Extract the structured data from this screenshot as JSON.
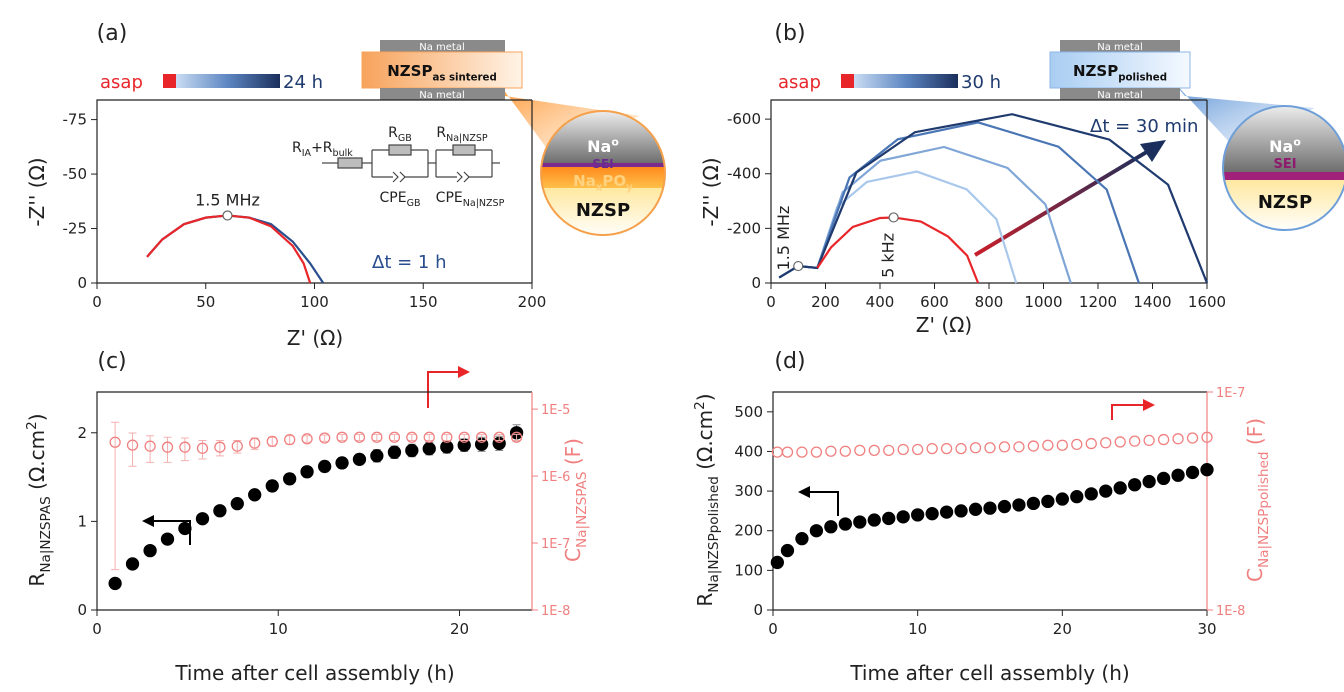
{
  "chart_data": [
    {
      "type": "line",
      "panel_label": "(a)",
      "xlabel": "Z' (Ω)",
      "ylabel": "-Z'' (Ω)",
      "xlim": [
        0,
        200
      ],
      "xticks": [
        0,
        50,
        100,
        150,
        200
      ],
      "ylim": [
        0,
        -84
      ],
      "yticks": [
        0,
        -25,
        -50,
        -75
      ],
      "series": [
        {
          "color": "#2a4e8e",
          "x": [
            23,
            30,
            40,
            50,
            60,
            70,
            80,
            90,
            98,
            104
          ],
          "values": [
            -12,
            -20,
            -27,
            -30,
            -31,
            -30,
            -27,
            -19,
            -9,
            0
          ]
        },
        {
          "color": "#e8262a",
          "x": [
            23,
            30,
            40,
            50,
            60,
            70,
            80,
            90,
            95,
            98
          ],
          "values": [
            -12,
            -20,
            -27,
            -30,
            -31,
            -30,
            -26,
            -17,
            -9,
            0
          ]
        }
      ],
      "markers": [
        {
          "x": 60,
          "y": -31,
          "label": "1.5 MHz"
        }
      ],
      "annotations": [
        "Δt = 1 h"
      ],
      "time_bar": {
        "start": "asap",
        "end": "24 h"
      },
      "circuit": [
        [
          "R",
          {
            "sub": "IA"
          },
          "+R",
          {
            "sub": "bulk"
          }
        ],
        [
          "R",
          {
            "sub": "GB"
          }
        ],
        [
          "R",
          {
            "sub": "Na|NZSP"
          }
        ],
        [
          "CPE",
          {
            "sub": "GB"
          }
        ],
        [
          "CPE",
          {
            "sub": "Na|NZSP"
          }
        ]
      ],
      "inset": {
        "top": "Na metal",
        "middle": [
          "NZSP",
          {
            "sub": "as sintered"
          }
        ],
        "bottom": "Na metal",
        "circle": [
          [
            "Na",
            {
              "sup": "o"
            }
          ],
          "SEI",
          [
            "Na",
            {
              "sub": "x"
            },
            "PO",
            {
              "sub": "y"
            }
          ],
          "NZSP"
        ]
      }
    },
    {
      "type": "line",
      "panel_label": "(b)",
      "xlabel": "Z' (Ω)",
      "ylabel": "-Z'' (Ω)",
      "xlim": [
        0,
        1600
      ],
      "xticks": [
        0,
        200,
        400,
        600,
        800,
        1000,
        1200,
        1400,
        1600
      ],
      "ylim": [
        0,
        -670
      ],
      "yticks": [
        0,
        -200,
        -400,
        -600
      ],
      "series": [
        {
          "color": "#aac8ec",
          "x": [
            30,
            100,
            170,
            243,
            352,
            535,
            718,
            827,
            900
          ],
          "values": [
            -20,
            -62,
            -55,
            -278,
            -370,
            -408,
            -343,
            -234,
            0
          ]
        },
        {
          "color": "#7fa6d6",
          "x": [
            30,
            100,
            170,
            263,
            402,
            635,
            868,
            1007,
            1100
          ],
          "values": [
            -20,
            -62,
            -55,
            -332,
            -448,
            -498,
            -421,
            -288,
            0
          ]
        },
        {
          "color": "#4a76b5",
          "x": [
            30,
            100,
            170,
            288,
            465,
            760,
            1055,
            1232,
            1350
          ],
          "values": [
            -20,
            -62,
            -55,
            -386,
            -526,
            -588,
            -499,
            -342,
            0
          ]
        },
        {
          "color": "#1f3a6e",
          "x": [
            30,
            100,
            170,
            313,
            528,
            885,
            1242,
            1457,
            1600
          ],
          "values": [
            -20,
            -62,
            -55,
            -404,
            -552,
            -618,
            -525,
            -360,
            0
          ]
        },
        {
          "color": "#e8262a",
          "x": [
            170,
            220,
            300,
            400,
            450,
            550,
            650,
            720,
            760
          ],
          "values": [
            -55,
            -130,
            -205,
            -238,
            -240,
            -225,
            -170,
            -100,
            0
          ]
        }
      ],
      "markers": [
        {
          "x": 100,
          "y": -62,
          "label": "1.5 MHz"
        },
        {
          "x": 450,
          "y": -240,
          "label": "5 kHz"
        }
      ],
      "annotations": [
        "Δt = 30 min"
      ],
      "time_bar": {
        "start": "asap",
        "end": "30 h"
      },
      "inset": {
        "top": "Na metal",
        "middle": [
          "NZSP",
          {
            "sub": "polished"
          }
        ],
        "bottom": "Na metal",
        "circle": [
          [
            "Na",
            {
              "sup": "o"
            }
          ],
          "SEI",
          "NZSP"
        ]
      }
    },
    {
      "type": "scatter",
      "panel_label": "(c)",
      "xlabel": "Time after cell assembly (h)",
      "ylabel": [
        "R",
        {
          "sub": "Na|NZSP"
        },
        {
          "sub": "AS"
        },
        " (Ω.cm",
        {
          "sup": "2"
        },
        ")"
      ],
      "y2label": [
        "C",
        {
          "sub": "Na|NZSP"
        },
        {
          "sub": "AS"
        },
        " (F)"
      ],
      "xlim": [
        0,
        24
      ],
      "xticks": [
        0,
        10,
        20
      ],
      "ylim": [
        0,
        2.46
      ],
      "yticks": [
        0,
        1,
        2
      ],
      "y2lim": [
        1e-08,
        1.8e-05
      ],
      "y2log": true,
      "y2ticks": [
        {
          "value": 1e-08,
          "label": "1E-8"
        },
        {
          "value": 1e-07,
          "label": "1E-7"
        },
        {
          "value": 1e-06,
          "label": "1E-6"
        },
        {
          "value": 1e-05,
          "label": "1E-5"
        }
      ],
      "series": [
        {
          "color": "#000000",
          "marker": "filled",
          "x": [
            1.0,
            1.96,
            2.93,
            3.89,
            4.85,
            5.82,
            6.78,
            7.74,
            8.7,
            9.67,
            10.63,
            11.59,
            12.56,
            13.52,
            14.48,
            15.44,
            16.41,
            17.37,
            18.33,
            19.3,
            20.26,
            21.22,
            22.19,
            23.15
          ],
          "values": [
            0.3,
            0.52,
            0.67,
            0.8,
            0.92,
            1.03,
            1.12,
            1.2,
            1.3,
            1.4,
            1.48,
            1.56,
            1.62,
            1.66,
            1.7,
            1.74,
            1.78,
            1.8,
            1.82,
            1.84,
            1.86,
            1.87,
            1.88,
            2.0
          ],
          "errors": [
            0.03,
            0.04,
            0.04,
            0.05,
            0.05,
            0.05,
            0.05,
            0.05,
            0.05,
            0.06,
            0.06,
            0.06,
            0.06,
            0.06,
            0.06,
            0.07,
            0.07,
            0.07,
            0.07,
            0.07,
            0.07,
            0.08,
            0.08,
            0.09
          ]
        },
        {
          "color": "#f08080",
          "marker": "open",
          "axis": "y2",
          "x": [
            1.0,
            1.96,
            2.93,
            3.89,
            4.85,
            5.82,
            6.78,
            7.74,
            8.7,
            9.67,
            10.63,
            11.59,
            12.56,
            13.52,
            14.48,
            15.44,
            16.41,
            17.37,
            18.33,
            19.3,
            20.26,
            21.22,
            22.19,
            23.15
          ],
          "values": [
            3.2e-06,
            2.9e-06,
            2.8e-06,
            2.7e-06,
            2.7e-06,
            2.6e-06,
            2.7e-06,
            2.8e-06,
            3.1e-06,
            3.3e-06,
            3.5e-06,
            3.6e-06,
            3.7e-06,
            3.8e-06,
            3.8e-06,
            3.8e-06,
            3.8e-06,
            3.8e-06,
            3.8e-06,
            3.8e-06,
            3.8e-06,
            3.8e-06,
            3.8e-06,
            3.8e-06
          ],
          "errors": [
            3.16e-06,
            1.5e-06,
            1.2e-06,
            1.1e-06,
            1e-06,
            8e-07,
            7e-07,
            6e-07,
            6e-07,
            5e-07,
            5e-07,
            4e-07,
            4e-07,
            4e-07,
            4e-07,
            4e-07,
            4e-07,
            4e-07,
            4e-07,
            4e-07,
            4e-07,
            4e-07,
            4e-07,
            4e-07
          ]
        }
      ]
    },
    {
      "type": "scatter",
      "panel_label": "(d)",
      "xlabel": "Time after cell assembly (h)",
      "ylabel": [
        "R",
        {
          "sub": "Na|NZSP"
        },
        {
          "sub": "polished"
        },
        " (Ω.cm",
        {
          "sup": "2"
        },
        ")"
      ],
      "y2label": [
        "C",
        {
          "sub": "Na|NZSP"
        },
        {
          "sub": "polished"
        },
        " (F)"
      ],
      "xlim": [
        0,
        30
      ],
      "xticks": [
        0,
        10,
        20,
        30
      ],
      "ylim": [
        0,
        550
      ],
      "yticks": [
        0,
        100,
        200,
        300,
        400,
        500
      ],
      "y2lim": [
        1e-08,
        1e-07
      ],
      "y2log": true,
      "y2ticks": [
        {
          "value": 1e-08,
          "label": "1E-8"
        },
        {
          "value": 1e-07,
          "label": "1E-7"
        }
      ],
      "series": [
        {
          "color": "#f08080",
          "marker": "open",
          "axis": "y2",
          "x": [
            0.3,
            1,
            2,
            3,
            4,
            5,
            6,
            7,
            8,
            9,
            10,
            11,
            12,
            13,
            14,
            15,
            16,
            17,
            18,
            19,
            20,
            21,
            22,
            23,
            24,
            25,
            26,
            27,
            28,
            29,
            30
          ],
          "values": [
            5.3e-08,
            5.3e-08,
            5.3e-08,
            5.3e-08,
            5.35e-08,
            5.35e-08,
            5.4e-08,
            5.4e-08,
            5.4e-08,
            5.45e-08,
            5.45e-08,
            5.5e-08,
            5.5e-08,
            5.5e-08,
            5.55e-08,
            5.55e-08,
            5.6e-08,
            5.6e-08,
            5.65e-08,
            5.7e-08,
            5.7e-08,
            5.75e-08,
            5.8e-08,
            5.85e-08,
            5.9e-08,
            5.95e-08,
            6e-08,
            6.05e-08,
            6.1e-08,
            6.15e-08,
            6.2e-08
          ]
        },
        {
          "color": "#000000",
          "marker": "filled",
          "x": [
            0.3,
            1,
            2,
            3,
            4,
            5,
            6,
            7,
            8,
            9,
            10,
            11,
            12,
            13,
            14,
            15,
            16,
            17,
            18,
            19,
            20,
            21,
            22,
            23,
            24,
            25,
            26,
            27,
            28,
            29,
            30
          ],
          "values": [
            120,
            150,
            180,
            200,
            210,
            217,
            222,
            227,
            231,
            235,
            240,
            243,
            247,
            250,
            254,
            257,
            261,
            265,
            269,
            274,
            280,
            286,
            293,
            300,
            308,
            316,
            324,
            332,
            340,
            347,
            354
          ]
        }
      ]
    }
  ]
}
